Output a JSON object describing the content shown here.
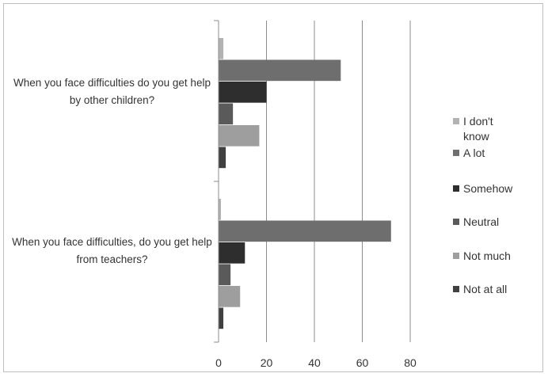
{
  "chart_data": {
    "type": "bar",
    "orientation": "horizontal",
    "title": "",
    "xlabel": "",
    "ylabel": "",
    "xlim": [
      0,
      80
    ],
    "x_ticks": [
      "0",
      "20",
      "40",
      "60",
      "80"
    ],
    "grid": true,
    "legend_position": "right",
    "categories": [
      "When you face difficulties do you get help by other children?",
      "When you face difficulties, do you get help from teachers?"
    ],
    "series": [
      {
        "name": "I don't know",
        "color": "#b3b3b3",
        "values": [
          2,
          1
        ]
      },
      {
        "name": "A lot",
        "color": "#6e6e6e",
        "values": [
          51,
          72
        ]
      },
      {
        "name": "Somehow",
        "color": "#2e2e2e",
        "values": [
          20,
          11
        ]
      },
      {
        "name": "Neutral",
        "color": "#5a5a5a",
        "values": [
          6,
          5
        ]
      },
      {
        "name": "Not much",
        "color": "#9e9e9e",
        "values": [
          17,
          9
        ]
      },
      {
        "name": "Not at all",
        "color": "#404040",
        "values": [
          3,
          2
        ]
      }
    ]
  }
}
